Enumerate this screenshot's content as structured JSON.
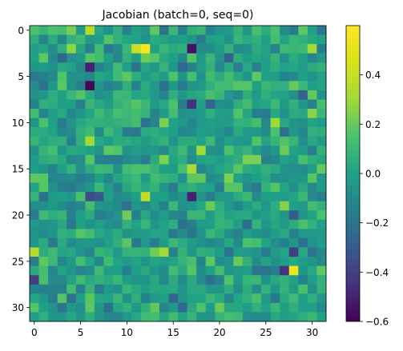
{
  "chart_data": {
    "type": "heatmap",
    "title": "Jacobian (batch=0, seq=0)",
    "xlabel": "",
    "ylabel": "",
    "rows": 32,
    "cols": 32,
    "x_ticks": [
      0,
      5,
      10,
      15,
      20,
      25,
      30
    ],
    "y_ticks": [
      0,
      5,
      10,
      15,
      20,
      25,
      30
    ],
    "x_range": [
      -0.5,
      31.5
    ],
    "y_range": [
      -0.5,
      31.5
    ],
    "y_direction": "top-to-bottom",
    "colormap": "viridis",
    "vmin": -0.6,
    "vmax": 0.6,
    "colorbar_ticks": [
      "0.4",
      "0.2",
      "0.0",
      "−0.2",
      "−0.4",
      "−0.6"
    ],
    "colorbar_tick_values": [
      0.4,
      0.2,
      0.0,
      -0.2,
      -0.4,
      -0.6
    ],
    "notable_values": [
      {
        "row": 2,
        "col": 12,
        "value": 0.58
      },
      {
        "row": 2,
        "col": 11,
        "value": 0.4
      },
      {
        "row": 0,
        "col": 6,
        "value": 0.35
      },
      {
        "row": 2,
        "col": 17,
        "value": -0.55
      },
      {
        "row": 4,
        "col": 6,
        "value": -0.5
      },
      {
        "row": 6,
        "col": 6,
        "value": -0.58
      },
      {
        "row": 8,
        "col": 17,
        "value": -0.45
      },
      {
        "row": 10,
        "col": 26,
        "value": 0.3
      },
      {
        "row": 15,
        "col": 17,
        "value": 0.32
      },
      {
        "row": 18,
        "col": 12,
        "value": 0.38
      },
      {
        "row": 18,
        "col": 17,
        "value": -0.5
      },
      {
        "row": 18,
        "col": 6,
        "value": -0.35
      },
      {
        "row": 18,
        "col": 7,
        "value": -0.3
      },
      {
        "row": 24,
        "col": 0,
        "value": 0.36
      },
      {
        "row": 26,
        "col": 28,
        "value": 0.55
      },
      {
        "row": 26,
        "col": 27,
        "value": -0.45
      },
      {
        "row": 27,
        "col": 0,
        "value": -0.4
      },
      {
        "row": 24,
        "col": 28,
        "value": -0.4
      }
    ],
    "seed": 7,
    "background_sd": 0.1
  }
}
